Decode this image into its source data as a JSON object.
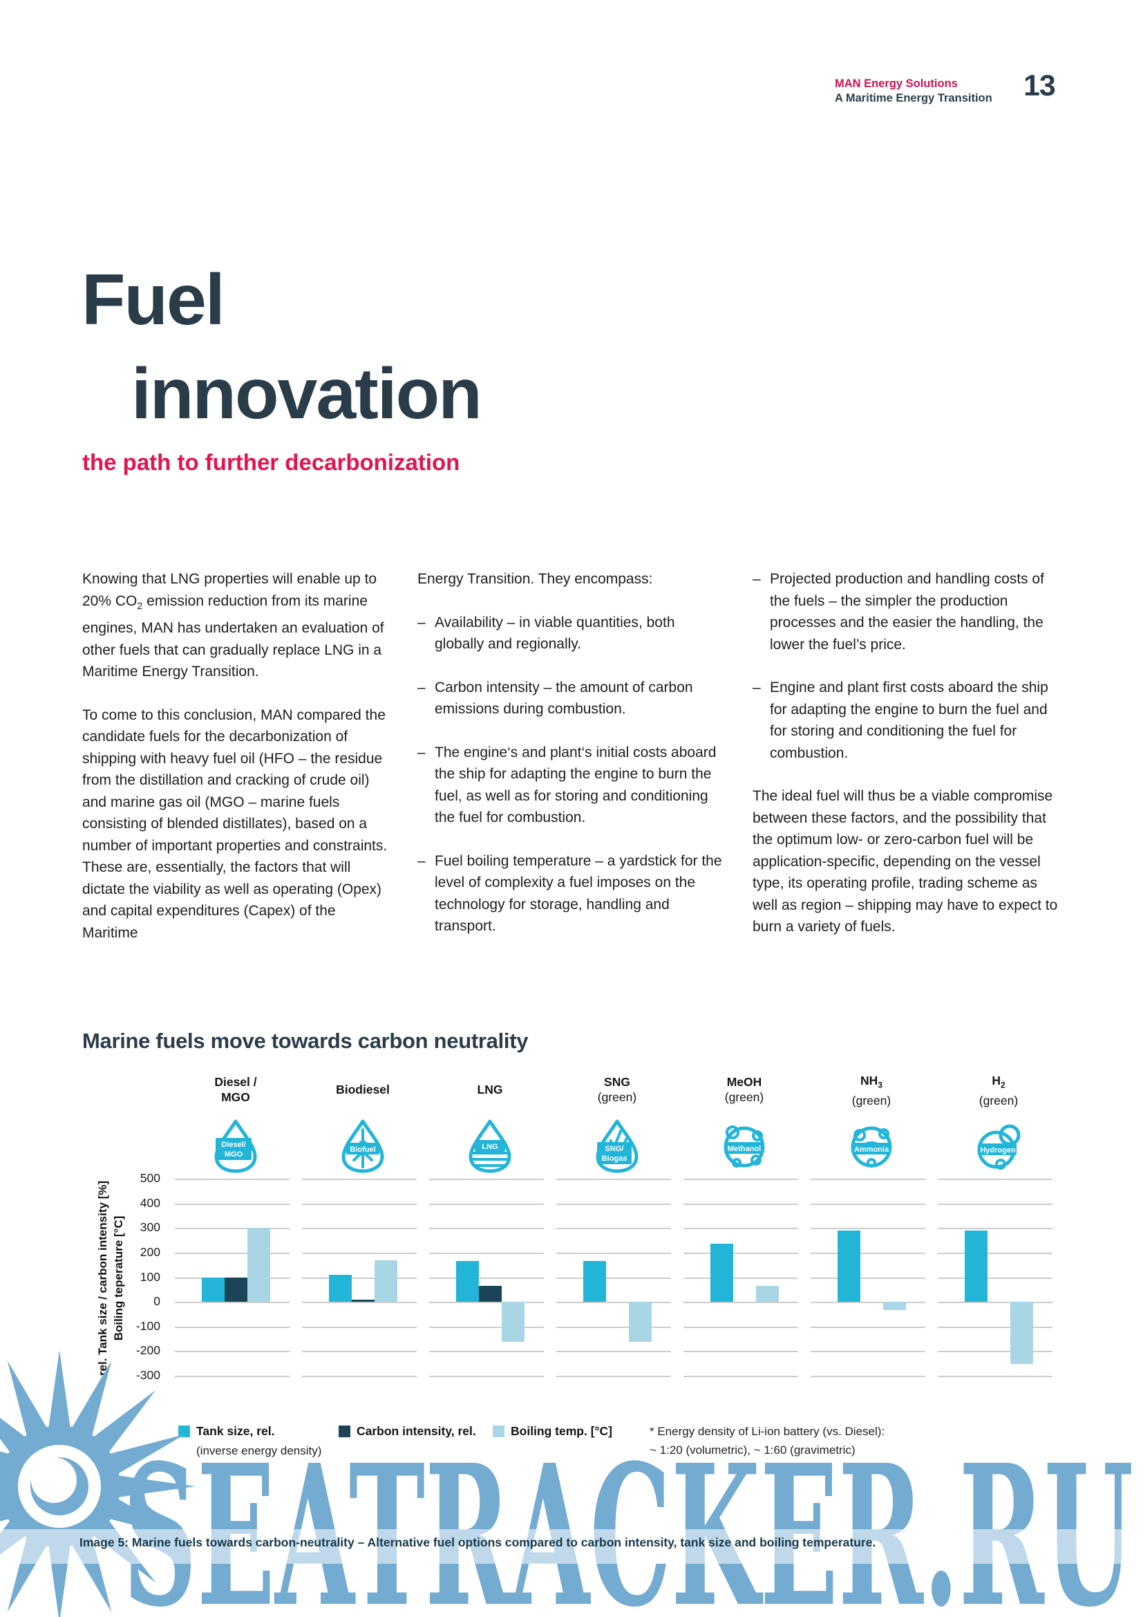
{
  "header": {
    "brand": "MAN Energy Solutions",
    "subtitle": "A Maritime Energy Transition",
    "page_number": "13"
  },
  "title": {
    "line1": "Fuel",
    "line2": "innovation",
    "subtitle": "the path to further decarbonization"
  },
  "body": {
    "col1_p1a": "Knowing that LNG properties will enable up to 20% CO",
    "col1_p1_sub": "2",
    "col1_p1b": " emission reduction from its marine engines, MAN has undertaken an evaluation of other fuels that can gradually replace LNG in a Maritime Energy Transition.",
    "col1_p2": "To come to this conclusion, MAN compared the candidate fuels for the decarbonization of shipping with heavy fuel oil (HFO – the residue from the distillation and cracking of crude oil) and marine gas oil (MGO – marine fuels consisting of blended distillates), based on a number of important properties and constraints. These are, essentially, the factors that will dictate the viability as well as operating (Opex) and capital expenditures (Capex) of the Maritime",
    "col2_intro": "Energy Transition. They encompass:",
    "col2_bullets": [
      "Availability – in viable quantities, both globally and regionally.",
      "Carbon intensity – the amount of carbon emissions during combustion.",
      "The engine‘s and plant‘s initial costs aboard the ship for adapting the engine to burn the fuel, as well as for storing and conditioning the fuel for combustion.",
      "Fuel boiling temperature – a yardstick for the level of complexity a fuel imposes on the technology for storage, handling and transport."
    ],
    "col3_bullets": [
      "Projected production and handling costs of the fuels – the simpler the production processes and the easier the handling, the lower the fuel’s price.",
      "Engine and plant first costs aboard the ship for adapting the engine to burn the fuel and for storing and conditioning the fuel for combustion."
    ],
    "col3_closing": "The ideal fuel will thus be a viable compromise between these factors, and the possibility that the optimum low- or zero-carbon fuel will be application-specific, depending on the vessel type, its operating profile, trading scheme as well as region – shipping may have to expect to burn a variety of fuels."
  },
  "chart": {
    "title": "Marine fuels move towards carbon neutrality",
    "fuels": [
      {
        "line1": "Diesel /",
        "line2": "MGO",
        "badge": [
          "Diesel/",
          "MGO"
        ]
      },
      {
        "line1": "Biodiesel",
        "line2": "",
        "badge": [
          "Biofuel"
        ]
      },
      {
        "line1": "LNG",
        "line2": "",
        "badge": [
          "LNG"
        ]
      },
      {
        "line1": "SNG",
        "line2": "(green)",
        "badge": [
          "SNG/",
          "Biogas"
        ]
      },
      {
        "line1": "MeOH",
        "line2": "(green)",
        "badge": [
          "Methanol"
        ]
      },
      {
        "line1": "NH",
        "line1_sub": "3",
        "line2": "(green)",
        "badge": [
          "Ammonia"
        ]
      },
      {
        "line1": "H",
        "line1_sub": "2",
        "line2": "(green)",
        "badge": [
          "Hydrogen"
        ]
      }
    ]
  },
  "chart_data": {
    "type": "bar",
    "title": "Marine fuels move towards carbon neutrality",
    "categories": [
      "Diesel / MGO",
      "Biodiesel",
      "LNG",
      "SNG (green)",
      "MeOH (green)",
      "NH3 (green)",
      "H2 (green)"
    ],
    "series": [
      {
        "name": "Tank size, rel. (inverse energy density)",
        "color": "#23b5d8",
        "values": [
          100,
          110,
          165,
          165,
          235,
          290,
          290
        ]
      },
      {
        "name": "Carbon intensity, rel.",
        "color": "#1c4457",
        "values": [
          100,
          10,
          65,
          0,
          0,
          0,
          0
        ]
      },
      {
        "name": "Boiling temp. [°C]",
        "color": "#a9d6e5",
        "values": [
          300,
          170,
          -162,
          -162,
          65,
          -33,
          -253
        ]
      }
    ],
    "ylabel_line1": "rel. Tank size / carbon intensity [%]",
    "ylabel_line2": "Boiling teperature [°C]",
    "yticks": [
      500,
      400,
      300,
      200,
      100,
      0,
      -100,
      -200,
      -300
    ],
    "ylim": [
      -300,
      500
    ],
    "grid": "horizontal-segmented-per-column",
    "legend_position": "bottom"
  },
  "legend": {
    "items": [
      {
        "label": "Tank size, rel.",
        "sublabel": "(inverse energy density)",
        "color": "#23b5d8"
      },
      {
        "label": "Carbon intensity, rel.",
        "color": "#1c4457"
      },
      {
        "label": "Boiling temp. [°C]",
        "color": "#a9d6e5"
      }
    ],
    "footnote_line1": "* Energy density of Li-ion battery (vs. Diesel):",
    "footnote_line2": "~ 1:20 (volumetric), ~ 1:60 (gravimetric)"
  },
  "caption": "Image 5: Marine fuels towards carbon-neutrality – Alternative fuel options compared to carbon intensity, tank size and boiling temperature.",
  "watermark": {
    "text": "SEATRACKER.RU"
  },
  "colors": {
    "brand_pink": "#ce1350",
    "heading_navy": "#2b3c49",
    "bar_cyan": "#23b5d8",
    "bar_dark": "#1c4457",
    "bar_light": "#a9d6e5",
    "watermark_blue": "#74abd0"
  }
}
